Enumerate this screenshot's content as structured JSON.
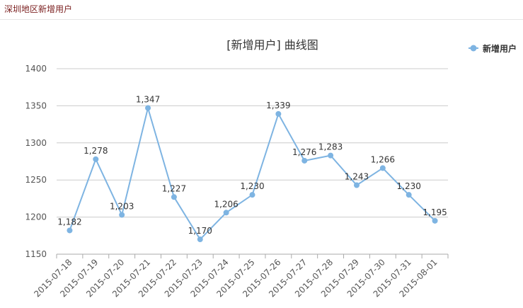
{
  "header": {
    "title": "深圳地区新增用户"
  },
  "chart_data": {
    "type": "line",
    "title": "[新增用户] 曲线图",
    "xlabel": "",
    "ylabel": "",
    "categories": [
      "2015-07-18",
      "2015-07-19",
      "2015-07-20",
      "2015-07-21",
      "2015-07-22",
      "2015-07-23",
      "2015-07-24",
      "2015-07-25",
      "2015-07-26",
      "2015-07-27",
      "2015-07-28",
      "2015-07-29",
      "2015-07-30",
      "2015-07-31",
      "2015-08-01"
    ],
    "series": [
      {
        "name": "新增用户",
        "color": "#7eb4e2",
        "values": [
          1182,
          1278,
          1203,
          1347,
          1227,
          1170,
          1206,
          1230,
          1339,
          1276,
          1283,
          1243,
          1266,
          1230,
          1195
        ],
        "labels": [
          "1,182",
          "1,278",
          "1,203",
          "1,347",
          "1,227",
          "1,170",
          "1,206",
          "1,230",
          "1,339",
          "1,276",
          "1,283",
          "1,243",
          "1,266",
          "1,230",
          "1,195"
        ]
      }
    ],
    "ylim": [
      1150,
      1400
    ],
    "yticks": [
      1150,
      1200,
      1250,
      1300,
      1350,
      1400
    ],
    "grid": true,
    "legend_position": "top-right"
  }
}
